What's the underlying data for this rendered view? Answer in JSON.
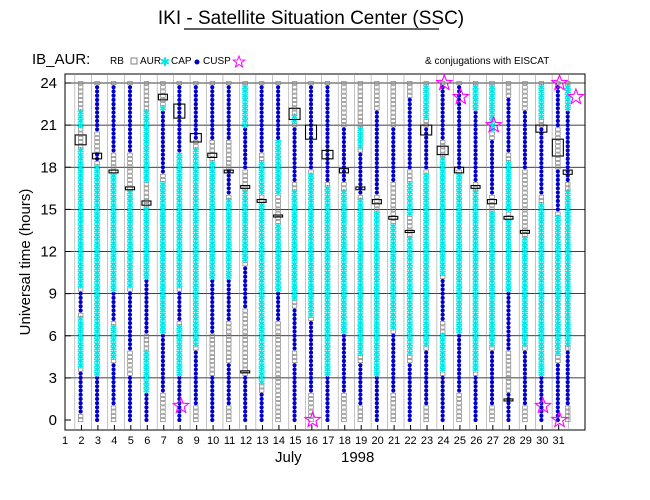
{
  "chart_data": {
    "type": "scatter",
    "title": "IKI - Satellite Situation Center (SSC)",
    "panel_label": "IB_AUR:",
    "legend": {
      "items": [
        {
          "name": "RB",
          "marker": "none"
        },
        {
          "name": "AUR",
          "marker": "square",
          "color": "#808080"
        },
        {
          "name": "CAP",
          "marker": "asterisk",
          "color": "#00e5e5"
        },
        {
          "name": "CUSP",
          "marker": "dot",
          "color": "#0000cc"
        },
        {
          "name": "",
          "marker": "star",
          "color": "#ff00ff"
        }
      ],
      "note": "& conjugations with EISCAT",
      "placement": "top"
    },
    "ylabel": "Universal time (hours)",
    "xlabel_month": "July",
    "xlabel_year": "1998",
    "ylim": [
      0,
      24.5
    ],
    "yticks": [
      0,
      3,
      6,
      9,
      12,
      15,
      18,
      21,
      24
    ],
    "x_day_ticks": [
      1,
      2,
      3,
      4,
      5,
      6,
      7,
      8,
      9,
      10,
      11,
      12,
      13,
      14,
      15,
      16,
      17,
      18,
      19,
      20,
      21,
      22,
      23,
      24,
      25,
      26,
      27,
      28,
      29,
      30,
      31
    ],
    "grid": true,
    "colors": {
      "aur": "#808080",
      "cap": "#00e5e5",
      "cusp": "#0000cc",
      "conj": "#ff00ff",
      "rb": "#000000"
    },
    "passes": [
      {
        "x": 1.95,
        "cusp": [
          [
            0.5,
            3.5
          ],
          [
            7.5,
            9
          ]
        ],
        "cap": [
          [
            3.8,
            7.3
          ],
          [
            9.5,
            19.5
          ],
          [
            21,
            22
          ]
        ],
        "rb": [
          [
            19.6,
            20.3
          ]
        ],
        "aur_gaps": []
      },
      {
        "x": 2.95,
        "cusp": [
          [
            0,
            3
          ],
          [
            18.5,
            19
          ],
          [
            20.5,
            24
          ]
        ],
        "cap": [
          [
            3.2,
            18.3
          ]
        ],
        "rb": [
          [
            18.6,
            19
          ]
        ],
        "aur_gaps": []
      },
      {
        "x": 3.95,
        "cusp": [
          [
            1,
            4
          ],
          [
            7,
            9
          ],
          [
            19,
            24
          ]
        ],
        "cap": [
          [
            4.2,
            6.8
          ],
          [
            9.2,
            17.5
          ],
          [
            21,
            23
          ]
        ],
        "rb": [
          [
            17.6,
            17.8
          ]
        ],
        "aur_gaps": []
      },
      {
        "x": 4.95,
        "cusp": [
          [
            0,
            3
          ],
          [
            5,
            9
          ],
          [
            19,
            24
          ]
        ],
        "cap": [
          [
            9.5,
            16.3
          ]
        ],
        "rb": [
          [
            16.4,
            16.6
          ]
        ],
        "aur_gaps": []
      },
      {
        "x": 5.95,
        "cusp": [
          [
            0,
            2
          ],
          [
            6,
            10
          ]
        ],
        "cap": [
          [
            2,
            5
          ],
          [
            10.2,
            15.2
          ],
          [
            17,
            22
          ]
        ],
        "rb": [
          [
            15.3,
            15.6
          ]
        ],
        "aur_gaps": []
      },
      {
        "x": 6.95,
        "cusp": [
          [
            2,
            6
          ],
          [
            17.5,
            22
          ]
        ],
        "cap": [
          [
            6.2,
            17
          ],
          [
            22,
            22.5
          ]
        ],
        "rb": [
          [
            22.8,
            23.2
          ]
        ],
        "aur_gaps": []
      },
      {
        "x": 7.95,
        "cusp": [
          [
            0,
            3
          ],
          [
            7,
            9
          ],
          [
            19,
            24
          ]
        ],
        "cap": [
          [
            3.2,
            6.8
          ],
          [
            9.5,
            19
          ]
        ],
        "rb": [
          [
            21.5,
            22.5
          ]
        ],
        "aur_gaps": []
      },
      {
        "x": 8.95,
        "cusp": [
          [
            1,
            5
          ],
          [
            20,
            24
          ]
        ],
        "cap": [
          [
            5.2,
            19.5
          ]
        ],
        "rb": [
          [
            19.8,
            20.4
          ]
        ],
        "aur_gaps": []
      },
      {
        "x": 9.95,
        "cusp": [
          [
            0,
            3
          ],
          [
            6,
            10
          ],
          [
            20,
            24
          ]
        ],
        "cap": [
          [
            10.2,
            18.5
          ]
        ],
        "rb": [
          [
            18.7,
            19
          ]
        ],
        "aur_gaps": []
      },
      {
        "x": 10.95,
        "cusp": [
          [
            1,
            4
          ],
          [
            7,
            10
          ],
          [
            16,
            18
          ],
          [
            20,
            24
          ]
        ],
        "cap": [
          [
            10.2,
            15.8
          ]
        ],
        "rb": [
          [
            17.6,
            17.8
          ]
        ],
        "aur_gaps": []
      },
      {
        "x": 11.95,
        "cusp": [
          [
            0,
            3
          ],
          [
            8,
            11
          ],
          [
            18,
            21
          ]
        ],
        "cap": [
          [
            11.2,
            16.4
          ],
          [
            21,
            24
          ]
        ],
        "rb": [
          [
            16.5,
            16.7
          ],
          [
            3.4,
            3.5
          ]
        ],
        "aur_gaps": []
      },
      {
        "x": 12.95,
        "cusp": [
          [
            0,
            2
          ],
          [
            19,
            24
          ]
        ],
        "cap": [
          [
            2.5,
            15.4
          ],
          [
            16,
            18.5
          ]
        ],
        "rb": [
          [
            15.5,
            15.7
          ]
        ],
        "aur_gaps": []
      },
      {
        "x": 13.95,
        "cusp": [
          [
            7,
            9
          ],
          [
            20,
            24
          ]
        ],
        "cap": [
          [
            9.2,
            14
          ],
          [
            16,
            20
          ]
        ],
        "rb": [
          [
            14.5,
            14.6
          ]
        ],
        "aur_gaps": []
      },
      {
        "x": 14.95,
        "cusp": [
          [
            0,
            4
          ],
          [
            5,
            8
          ],
          [
            17,
            21
          ]
        ],
        "cap": [
          [
            8.5,
            16.5
          ],
          [
            21.2,
            21.8
          ]
        ],
        "rb": [
          [
            21.4,
            22.2
          ]
        ],
        "aur_gaps": []
      },
      {
        "x": 15.95,
        "cusp": [
          [
            2,
            7
          ],
          [
            18,
            24
          ]
        ],
        "cap": [
          [
            7.2,
            17.5
          ]
        ],
        "rb": [
          [
            20,
            21
          ]
        ],
        "aur_gaps": []
      },
      {
        "x": 16.95,
        "cusp": [
          [
            0,
            3
          ],
          [
            17,
            24
          ]
        ],
        "cap": [
          [
            3.2,
            16.8
          ]
        ],
        "rb": [
          [
            18.6,
            19.2
          ]
        ],
        "aur_gaps": []
      },
      {
        "x": 17.95,
        "cusp": [
          [
            2,
            6
          ],
          [
            17,
            21
          ]
        ],
        "cap": [
          [
            6.2,
            16.5
          ]
        ],
        "rb": [
          [
            17.6,
            17.9
          ]
        ],
        "aur_gaps": []
      },
      {
        "x": 18.95,
        "cusp": [
          [
            1,
            4
          ],
          [
            16,
            19
          ]
        ],
        "cap": [
          [
            4.5,
            15.8
          ],
          [
            19.5,
            21
          ]
        ],
        "rb": [
          [
            16.4,
            16.6
          ]
        ],
        "aur_gaps": []
      },
      {
        "x": 19.95,
        "cusp": [
          [
            0,
            3
          ],
          [
            16,
            22
          ]
        ],
        "cap": [
          [
            3.2,
            15
          ]
        ],
        "rb": [
          [
            15.4,
            15.7
          ]
        ],
        "aur_gaps": []
      },
      {
        "x": 20.95,
        "cusp": [
          [
            2,
            6
          ],
          [
            17,
            21
          ]
        ],
        "cap": [
          [
            6.5,
            14
          ]
        ],
        "rb": [
          [
            14.3,
            14.5
          ]
        ],
        "aur_gaps": []
      },
      {
        "x": 21.95,
        "cusp": [
          [
            0,
            4
          ],
          [
            18,
            23
          ]
        ],
        "cap": [
          [
            4.5,
            13
          ],
          [
            14.5,
            17
          ]
        ],
        "rb": [
          [
            13.4,
            13.5
          ]
        ],
        "aur_gaps": []
      },
      {
        "x": 22.95,
        "cusp": [
          [
            1,
            5
          ],
          [
            18,
            21
          ]
        ],
        "cap": [
          [
            5.2,
            17.5
          ],
          [
            21.5,
            24
          ]
        ],
        "rb": [
          [
            20.3,
            21
          ]
        ],
        "aur_gaps": []
      },
      {
        "x": 23.95,
        "cusp": [
          [
            0,
            3
          ],
          [
            7,
            10
          ],
          [
            20,
            24
          ]
        ],
        "cap": [
          [
            10.5,
            18.8
          ],
          [
            3.5,
            6
          ]
        ],
        "rb": [
          [
            18.9,
            19.5
          ]
        ],
        "aur_gaps": []
      },
      {
        "x": 24.95,
        "cusp": [
          [
            2,
            6
          ],
          [
            18,
            24
          ]
        ],
        "cap": [
          [
            6.2,
            17.5
          ]
        ],
        "rb": [
          [
            17.6,
            18
          ]
        ],
        "aur_gaps": []
      },
      {
        "x": 25.95,
        "cusp": [
          [
            0,
            3
          ],
          [
            17,
            22
          ]
        ],
        "cap": [
          [
            3.5,
            16.3
          ],
          [
            22,
            24
          ]
        ],
        "rb": [
          [
            16.5,
            16.7
          ]
        ],
        "aur_gaps": []
      },
      {
        "x": 26.95,
        "cusp": [
          [
            1,
            5
          ],
          [
            16,
            20
          ]
        ],
        "cap": [
          [
            5.2,
            15
          ],
          [
            20.5,
            24
          ]
        ],
        "rb": [
          [
            15.4,
            15.7
          ]
        ],
        "aur_gaps": []
      },
      {
        "x": 27.95,
        "cusp": [
          [
            0,
            2
          ],
          [
            5,
            9
          ],
          [
            19,
            23
          ]
        ],
        "cap": [
          [
            9.2,
            14.2
          ],
          [
            15,
            18.5
          ]
        ],
        "rb": [
          [
            14.3,
            14.5
          ],
          [
            1.4,
            1.5
          ]
        ],
        "aur_gaps": []
      },
      {
        "x": 28.95,
        "cusp": [
          [
            1,
            5
          ],
          [
            18,
            22
          ]
        ],
        "cap": [
          [
            5.2,
            13
          ]
        ],
        "rb": [
          [
            13.3,
            13.5
          ]
        ],
        "aur_gaps": []
      },
      {
        "x": 29.95,
        "cusp": [
          [
            0,
            3
          ],
          [
            16,
            21
          ]
        ],
        "cap": [
          [
            3.2,
            15.5
          ],
          [
            21.5,
            24
          ]
        ],
        "rb": [
          [
            20.5,
            21
          ]
        ],
        "aur_gaps": []
      },
      {
        "x": 30.95,
        "cusp": [
          [
            0,
            4
          ],
          [
            15,
            18
          ],
          [
            21,
            24
          ]
        ],
        "cap": [
          [
            4.5,
            14.5
          ]
        ],
        "rb": [
          [
            18.8,
            20
          ]
        ],
        "aur_gaps": []
      },
      {
        "x": 31.55,
        "cusp": [
          [
            1,
            5
          ],
          [
            17,
            22
          ]
        ],
        "cap": [
          [
            5.2,
            16.5
          ],
          [
            22,
            24
          ]
        ],
        "rb": [
          [
            17.5,
            17.8
          ]
        ],
        "aur_gaps": []
      }
    ],
    "conjunctions": [
      {
        "day": 8,
        "ut": 1.0
      },
      {
        "day": 16,
        "ut": 0.0
      },
      {
        "day": 24,
        "ut": 24.0
      },
      {
        "day": 25,
        "ut": 23.0
      },
      {
        "day": 27,
        "ut": 21.0
      },
      {
        "day": 30,
        "ut": 1.0
      },
      {
        "day": 31,
        "ut": 0.0
      },
      {
        "day": 31,
        "ut": 24.0
      },
      {
        "day": 32,
        "ut": 23.0
      }
    ]
  }
}
